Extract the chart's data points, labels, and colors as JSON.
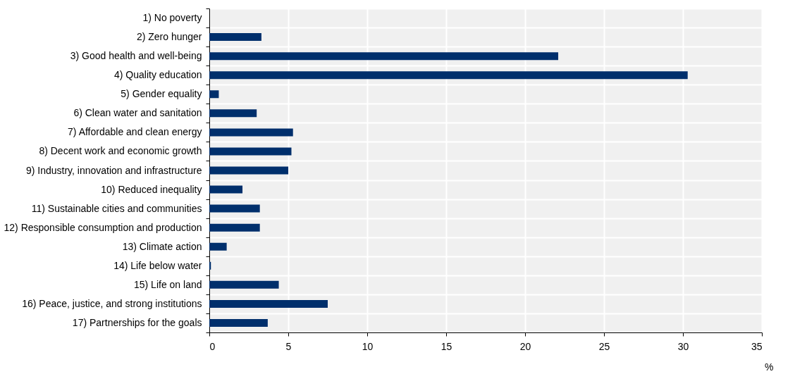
{
  "chart_data": {
    "type": "bar",
    "orientation": "horizontal",
    "xlabel": "%",
    "categories": [
      "1) No poverty",
      "2) Zero hunger",
      "3) Good health and well-being",
      "4) Quality education",
      "5) Gender equality",
      "6) Clean water and sanitation",
      "7) Affordable and clean energy",
      "8) Decent work and economic growth",
      "9) Industry, innovation and infrastructure",
      "10) Reduced inequality",
      "11) Sustainable cities and communities",
      "12) Responsible consumption and production",
      "13) Climate action",
      "14) Life below water",
      "15) Life on land",
      "16) Peace, justice, and strong institutions",
      "17) Partnerships for the goals"
    ],
    "values": [
      0,
      3.3,
      22.1,
      30.3,
      0.6,
      3.0,
      5.3,
      5.2,
      5.0,
      2.1,
      3.2,
      3.2,
      1.1,
      0.1,
      4.4,
      7.5,
      3.7
    ],
    "color": "#002f6c",
    "xlim": [
      0,
      35
    ],
    "xticks": [
      0,
      5,
      10,
      15,
      20,
      25,
      30,
      35
    ],
    "grid": true
  }
}
